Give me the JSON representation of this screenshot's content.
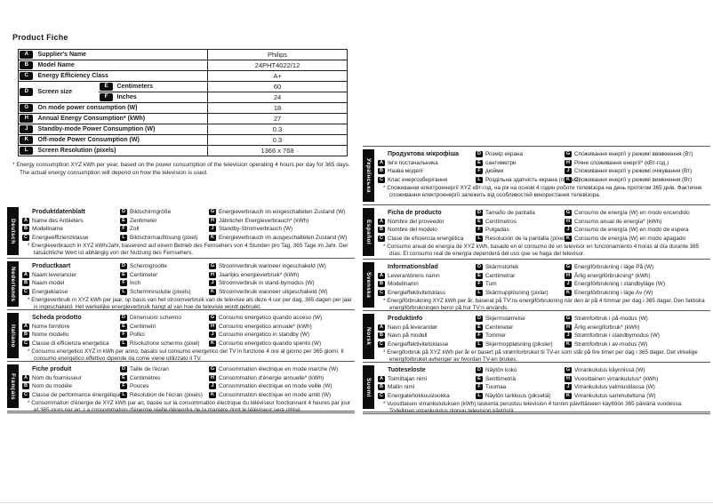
{
  "page_title": "Product Fiche",
  "footnote": "* Energy consumption XYZ kWh per year, based on the power consumption of the television operating 4 hours per day for 365 days. The actual energy consumption will depend on how the television is used.",
  "spec_table": {
    "rows": [
      {
        "key": "A",
        "label": "Supplier's Name",
        "value": "Philips"
      },
      {
        "key": "B",
        "label": "Model Name",
        "value": "24PHT4022/12"
      },
      {
        "key": "C",
        "label": "Energy Efficiency Class",
        "value": "A+"
      },
      {
        "key": "D",
        "label": "Screen size",
        "sub": [
          {
            "key": "E",
            "label": "Centimeters",
            "value": "60"
          },
          {
            "key": "F",
            "label": "Inches",
            "value": "24"
          }
        ]
      },
      {
        "key": "G",
        "label": "On mode power consumption (W)",
        "value": "18"
      },
      {
        "key": "H",
        "label": "Annual Energy Consumption* (kWh)",
        "value": "27"
      },
      {
        "key": "J",
        "label": "Standby-mode Power Consumption (W)",
        "value": "0.3"
      },
      {
        "key": "K",
        "label": "Off-mode Power Consumption (W)",
        "value": "0.3"
      },
      {
        "key": "L",
        "label": "Screen Resolution (pixels)",
        "value": "1366 x 768"
      }
    ]
  },
  "sections": [
    {
      "language": "Deutsch",
      "title": "Produktdatenblatt",
      "col1": [
        {
          "key": "A",
          "label": "Name des Anbieters"
        },
        {
          "key": "B",
          "label": "Modellname"
        },
        {
          "key": "C",
          "label": "Energieeffizienzklasse"
        }
      ],
      "col2": [
        {
          "key": "D",
          "label": "Bildschirmgröße"
        },
        {
          "key": "E",
          "label": "Zentimeter"
        },
        {
          "key": "F",
          "label": "Zoll"
        },
        {
          "key": "L",
          "label": "Bildschirmauflösung (pixel)"
        }
      ],
      "col3": [
        {
          "key": "G",
          "label": "Energieverbrauch im eingeschalteten Zustand (W)"
        },
        {
          "key": "H",
          "label": "Jährlicher Energieverbrauch* (kWh)"
        },
        {
          "key": "J",
          "label": "Standby-Stromverbrauch (W)"
        },
        {
          "key": "K",
          "label": "Energieverbrauch im ausgeschalteten Zustand (W)"
        }
      ],
      "note": "* Energieverbrauch in XYZ kWh/Jahr, basierend auf einem Betrieb des Fernsehers von 4 Stunden pro Tag, 365 Tage im Jahr. Der tatsächliche Wert ist abhängig von der Nutzung des Fernsehers."
    },
    {
      "language": "Nederlands",
      "title": "Productkaart",
      "col1": [
        {
          "key": "A",
          "label": "Naam leverancier"
        },
        {
          "key": "B",
          "label": "Naam model"
        },
        {
          "key": "C",
          "label": "Energieklasse"
        }
      ],
      "col2": [
        {
          "key": "D",
          "label": "Schermgrootte"
        },
        {
          "key": "E",
          "label": "Centimeter"
        },
        {
          "key": "F",
          "label": "Inch"
        },
        {
          "key": "L",
          "label": "Schermresolutie (pixels)"
        }
      ],
      "col3": [
        {
          "key": "G",
          "label": "Stroomverbruik wanneer ingeschakeld (W)"
        },
        {
          "key": "H",
          "label": "Jaarlijks energieverbruik* (kWh)"
        },
        {
          "key": "J",
          "label": "Stroomverbruik in stand-bymodus (W)"
        },
        {
          "key": "K",
          "label": "Stroomverbruik wanneer uitgeschakeld (W)"
        }
      ],
      "note": "* Energieverbruik in XYZ kWh per jaar, op basis van het stroomverbruik van de televisie als deze 4 uur per dag, 365 dagen per jaar is ingeschakeld. Het werkelijke energieverbruik hangt af van hoe de televisie wordt gebruikt."
    },
    {
      "language": "Italiano",
      "title": "Scheda prodotto",
      "col1": [
        {
          "key": "A",
          "label": "Nome fornitore"
        },
        {
          "key": "B",
          "label": "Nome modello"
        },
        {
          "key": "C",
          "label": "Classe di efficienza energetica"
        }
      ],
      "col2": [
        {
          "key": "D",
          "label": "Dimensioni schermo"
        },
        {
          "key": "E",
          "label": "Centimetri"
        },
        {
          "key": "F",
          "label": "Pollici"
        },
        {
          "key": "L",
          "label": "Risoluzione schermo (pixel)"
        }
      ],
      "col3": [
        {
          "key": "G",
          "label": "Consumo energetico quando acceso (W)"
        },
        {
          "key": "H",
          "label": "Consumo energetico annuale* (kWh)"
        },
        {
          "key": "J",
          "label": "Consumo energetico in standby (W)"
        },
        {
          "key": "K",
          "label": "Consumo energetico quando spento (W)"
        }
      ],
      "note": "* Consumo energetico XYZ in kWh per anno, basato sul consumo energetico del TV in funzione 4 ore al giorno per 365 giorni. Il consumo energetico effettivo dipende da come viene utilizzato il TV."
    },
    {
      "language": "Français",
      "title": "Fiche produit",
      "col1": [
        {
          "key": "A",
          "label": "Nom du fournisseur"
        },
        {
          "key": "B",
          "label": "Nom du modèle"
        },
        {
          "key": "C",
          "label": "Classe de performance énergétique"
        }
      ],
      "col2": [
        {
          "key": "D",
          "label": "Taille de l'écran"
        },
        {
          "key": "E",
          "label": "Centimètres"
        },
        {
          "key": "F",
          "label": "Pouces"
        },
        {
          "key": "L",
          "label": "Résolution de l'écran (pixels)"
        }
      ],
      "col3": [
        {
          "key": "G",
          "label": "Consommation électrique en mode marche (W)"
        },
        {
          "key": "H",
          "label": "Consommation d'énergie annuelle* (kWh)"
        },
        {
          "key": "J",
          "label": "Consommation électrique en mode veille (W)"
        },
        {
          "key": "K",
          "label": "Consommation électrique en mode arrêt (W)"
        }
      ],
      "note": "* Consommation d'énergie de XYZ kWh par an, basée sur la consommation électrique du téléviseur fonctionnant 4 heures par jour et 365 jours par an. La consommation d'énergie réelle dépendra de la manière dont le téléviseur sera utilisé."
    },
    {
      "language": "Українська",
      "title": "Продуктова мікрофіша",
      "col1": [
        {
          "key": "A",
          "label": "Ім'я постачальника"
        },
        {
          "key": "B",
          "label": "Назва моделі"
        },
        {
          "key": "C",
          "label": "Клас енергозберігання"
        }
      ],
      "col2": [
        {
          "key": "D",
          "label": "Розмір екрана"
        },
        {
          "key": "E",
          "label": "сантиметри"
        },
        {
          "key": "F",
          "label": "дюйми"
        },
        {
          "key": "L",
          "label": "Роздільна здатність екрана (пікселі)"
        }
      ],
      "col3": [
        {
          "key": "G",
          "label": "Споживання енергії у режимі ввімкнення (Вт)"
        },
        {
          "key": "H",
          "label": "Річне споживання енергії* (кВт-год.)"
        },
        {
          "key": "J",
          "label": "Споживання енергії у режимі очікування (Вт)"
        },
        {
          "key": "K",
          "label": "Споживання енергії у режимі вимкнення (Вт)"
        }
      ],
      "note": "* Споживання електроенергії XYZ кВт-год. на рік на основі 4 годин роботи телевізора на день протягом 365 днів. Фактичне споживання електроенергії залежить від особливостей використання телевізора."
    },
    {
      "language": "Español",
      "title": "Ficha de producto",
      "col1": [
        {
          "key": "A",
          "label": "Nombre del proveedor"
        },
        {
          "key": "B",
          "label": "Nombre del modelo"
        },
        {
          "key": "C",
          "label": "Clase de eficiencia energética"
        }
      ],
      "col2": [
        {
          "key": "D",
          "label": "Tamaño de pantalla"
        },
        {
          "key": "E",
          "label": "Centímetros"
        },
        {
          "key": "F",
          "label": "Pulgadas"
        },
        {
          "key": "L",
          "label": "Resolución de la pantalla (píxeles)"
        }
      ],
      "col3": [
        {
          "key": "G",
          "label": "Consumo de energía (W) en modo encendido"
        },
        {
          "key": "H",
          "label": "Consumo anual de energía* (kWh)"
        },
        {
          "key": "J",
          "label": "Consumo de energía (W) en modo de espera"
        },
        {
          "key": "K",
          "label": "Consumo de energía (W) en modo apagado"
        }
      ],
      "note": "* Consumo anual de energía de XYZ kWh, basado en el consumo de un televisor en funcionamiento 4 horas al día durante 365 días. El consumo real de energía dependerá del uso que se haga del televisor."
    },
    {
      "language": "Svenska",
      "title": "Informationsblad",
      "col1": [
        {
          "key": "A",
          "label": "Leverantörens namn"
        },
        {
          "key": "B",
          "label": "Modellnamn"
        },
        {
          "key": "C",
          "label": "Energieffektivitetsklass"
        }
      ],
      "col2": [
        {
          "key": "D",
          "label": "Skärmstorlek"
        },
        {
          "key": "E",
          "label": "Centimetrar"
        },
        {
          "key": "F",
          "label": "Tum"
        },
        {
          "key": "L",
          "label": "Skärmupplösning (pixlar)"
        }
      ],
      "col3": [
        {
          "key": "G",
          "label": "Energiförbrukning i läge På (W)"
        },
        {
          "key": "H",
          "label": "Årlig energiförbrukning* (kWh)"
        },
        {
          "key": "J",
          "label": "Energiförbrukning i standbyläge (W)"
        },
        {
          "key": "K",
          "label": "Energiförbrukning i läge Av (W)"
        }
      ],
      "note": "* Energiförbrukning XYZ kWh per år, baserat på TV:ns energiförbrukning när den är på 4 timmar per dag i 365 dagar. Den faktiska energiförbrukningen beror på hur TV:n används."
    },
    {
      "language": "Norsk",
      "title": "Produktinfo",
      "col1": [
        {
          "key": "A",
          "label": "Navn på leverandør"
        },
        {
          "key": "B",
          "label": "Navn på modell"
        },
        {
          "key": "C",
          "label": "Energieffektivitetsklasse"
        }
      ],
      "col2": [
        {
          "key": "D",
          "label": "Skjermstørrelse"
        },
        {
          "key": "E",
          "label": "Centimeter"
        },
        {
          "key": "F",
          "label": "Tommer"
        },
        {
          "key": "L",
          "label": "Skjermoppløsning (piksler)"
        }
      ],
      "col3": [
        {
          "key": "G",
          "label": "Strømforbruk i på-modus (W)"
        },
        {
          "key": "H",
          "label": "Årlig energiforbruk* (kWh)"
        },
        {
          "key": "J",
          "label": "Strømforbruk i standbymodus (W)"
        },
        {
          "key": "K",
          "label": "Strømforbruk i av-modus (W)"
        }
      ],
      "note": "* Energiforbruk på XYZ kWh per år er basert på strømforbruket til TV-er som står på fire timer per dag i 365 dager. Det virkelige energiforbruket avhenger av hvordan TV-en brukes."
    },
    {
      "language": "Suomi",
      "title": "Tuoteseloste",
      "col1": [
        {
          "key": "A",
          "label": "Toimittajan nimi"
        },
        {
          "key": "B",
          "label": "Mallin nimi"
        },
        {
          "key": "C",
          "label": "Energiatehokkuusluokka"
        }
      ],
      "col2": [
        {
          "key": "D",
          "label": "Näytön koko"
        },
        {
          "key": "E",
          "label": "Senttimetriä"
        },
        {
          "key": "F",
          "label": "Tuumaa"
        },
        {
          "key": "L",
          "label": "Näytön tarkkuus (pikseliä)"
        }
      ],
      "col3": [
        {
          "key": "G",
          "label": "Virrankulutus käynnissä (W)"
        },
        {
          "key": "H",
          "label": "Vuosittainen virrankulutus* (kWh)"
        },
        {
          "key": "J",
          "label": "Virrankulutus valmiustilassa (W)"
        },
        {
          "key": "K",
          "label": "Virrankulutus sammutettuna (W)"
        }
      ],
      "note": "* Vuosittaisen virrankulutuksen (kWh) laskenta perustuu television 4 tunnin päivittäiseen käyttöön 365 päivänä vuodessa. Todellinen virrankulutus riippuu television käytöstä."
    }
  ]
}
